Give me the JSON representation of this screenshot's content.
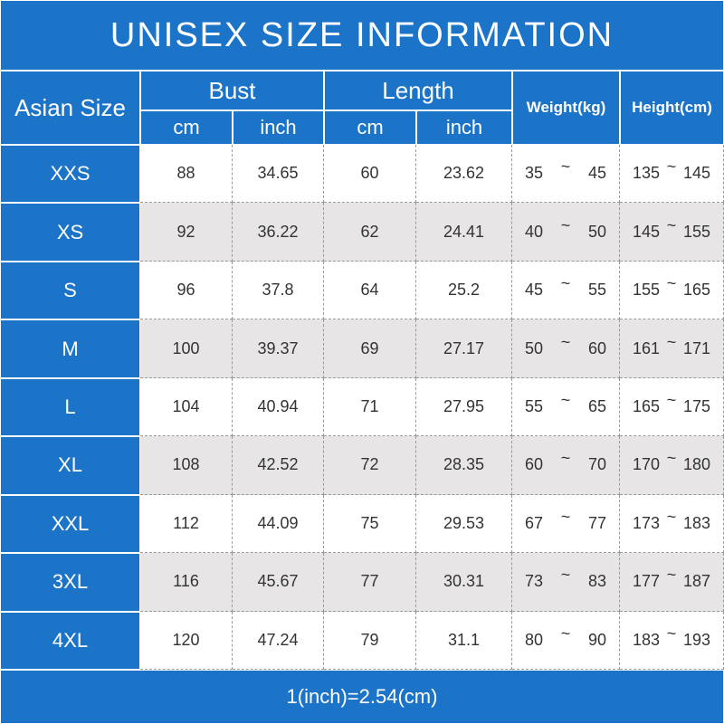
{
  "header": {
    "title": "UNISEX SIZE INFORMATION"
  },
  "table": {
    "columns": {
      "size": "Asian Size",
      "bust": "Bust",
      "length": "Length",
      "weight": "Weight(kg)",
      "height": "Height(cm)",
      "cm": "cm",
      "inch": "inch"
    },
    "range_separator": "~",
    "rows": [
      [
        "XXS",
        "88",
        "34.65",
        "60",
        "23.62",
        "35",
        "45",
        "135",
        "145"
      ],
      [
        "XS",
        "92",
        "36.22",
        "62",
        "24.41",
        "40",
        "50",
        "145",
        "155"
      ],
      [
        "S",
        "96",
        "37.8",
        "64",
        "25.2",
        "45",
        "55",
        "155",
        "165"
      ],
      [
        "M",
        "100",
        "39.37",
        "69",
        "27.17",
        "50",
        "60",
        "161",
        "171"
      ],
      [
        "L",
        "104",
        "40.94",
        "71",
        "27.95",
        "55",
        "65",
        "165",
        "175"
      ],
      [
        "XL",
        "108",
        "42.52",
        "72",
        "28.35",
        "60",
        "70",
        "170",
        "180"
      ],
      [
        "XXL",
        "112",
        "44.09",
        "75",
        "29.53",
        "67",
        "77",
        "173",
        "183"
      ],
      [
        "3XL",
        "116",
        "45.67",
        "77",
        "30.31",
        "73",
        "83",
        "177",
        "187"
      ],
      [
        "4XL",
        "120",
        "47.24",
        "79",
        "31.1",
        "80",
        "90",
        "183",
        "193"
      ]
    ]
  },
  "footer": {
    "note": "1(inch)=2.54(cm)"
  }
}
